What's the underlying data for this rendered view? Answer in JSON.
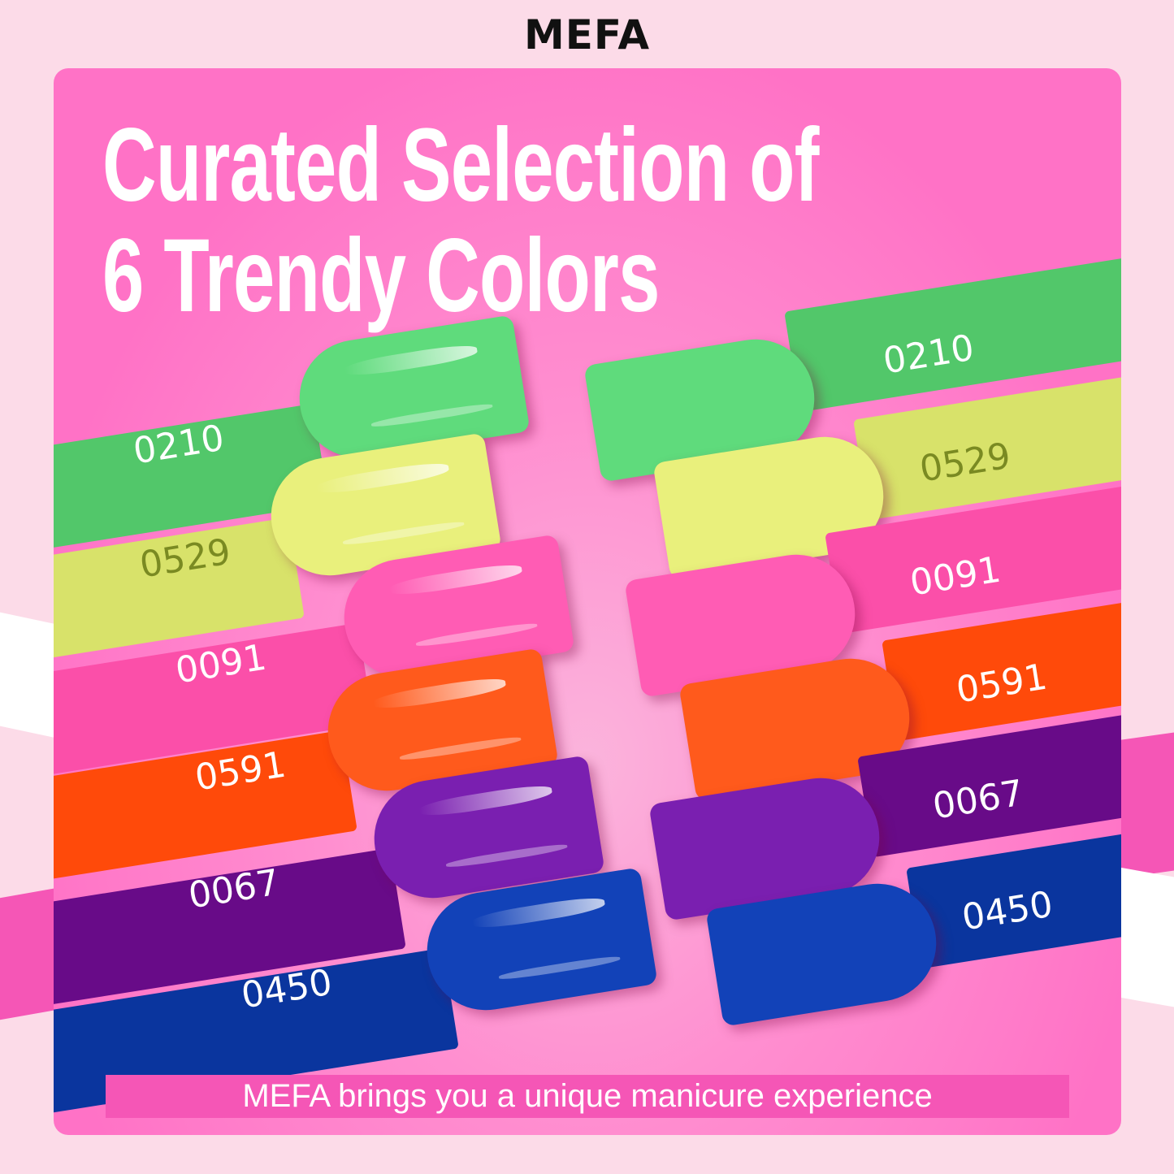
{
  "brand": "MEFA",
  "title": {
    "line1": "Curated Selection of",
    "line2": "6 Trendy Colors"
  },
  "colors": [
    {
      "code": "0210",
      "stripe": "#52c76a",
      "nail": "#5fdb7c",
      "text": "#ffffff"
    },
    {
      "code": "0529",
      "stripe": "#d8e26a",
      "nail": "#e9f07c",
      "text": "#7a8a22"
    },
    {
      "code": "0091",
      "stripe": "#fb4fa9",
      "nail": "#ff5cb4",
      "text": "#ffffff"
    },
    {
      "code": "0591",
      "stripe": "#ff4a0a",
      "nail": "#ff5a1c",
      "text": "#ffffff"
    },
    {
      "code": "0067",
      "stripe": "#680b88",
      "nail": "#7a1fb0",
      "text": "#ffffff"
    },
    {
      "code": "0450",
      "stripe": "#0a359e",
      "nail": "#1242b8",
      "text": "#ffffff"
    }
  ],
  "tagline": "MEFA brings you a unique manicure experience"
}
